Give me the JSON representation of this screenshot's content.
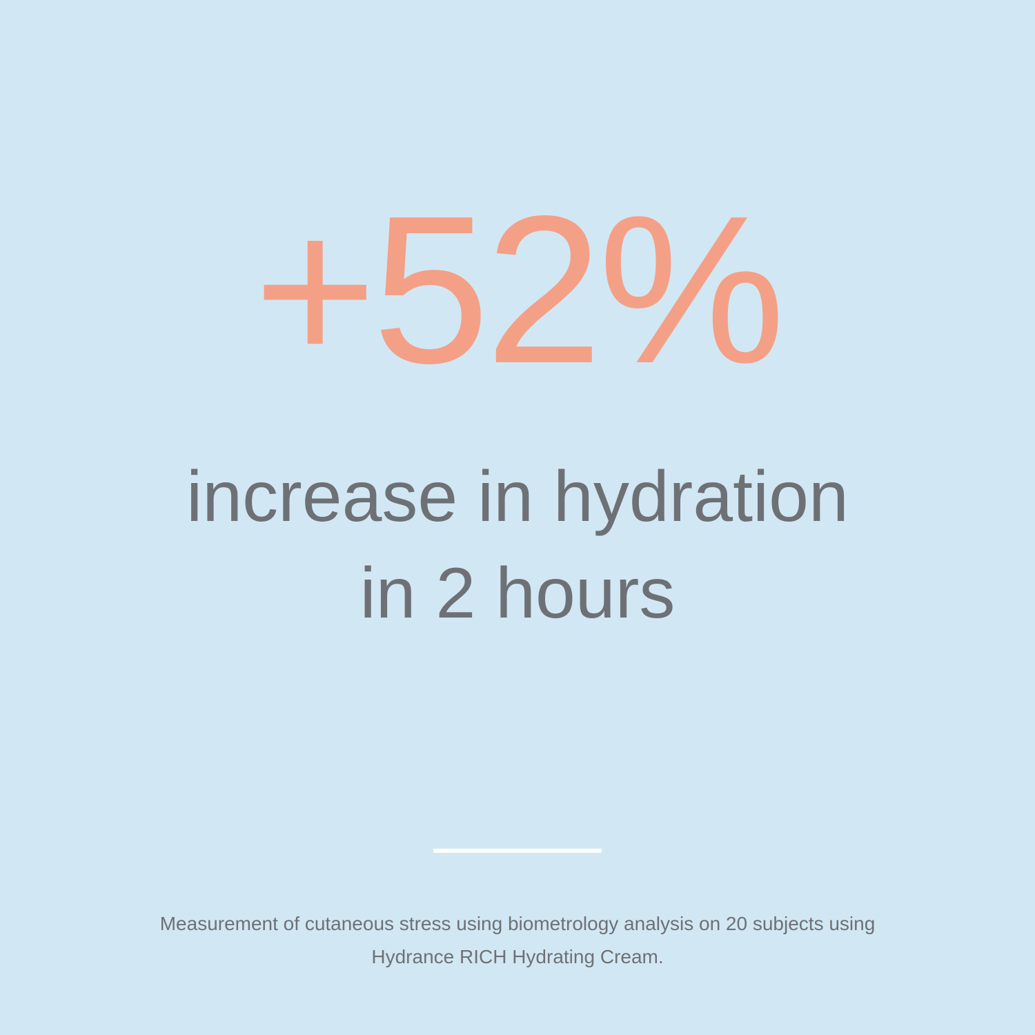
{
  "stat": {
    "value": "+52%"
  },
  "headline": {
    "line1": "increase in hydration",
    "line2": "in 2 hours"
  },
  "footnote": {
    "line1": "Measurement of cutaneous stress using biometrology analysis on 20 subjects using",
    "line2": "Hydrance RICH Hydrating Cream."
  },
  "colors": {
    "background": "#d2e7f4",
    "accent": "#f4a086",
    "text": "#6d7175",
    "divider": "#ffffff"
  }
}
